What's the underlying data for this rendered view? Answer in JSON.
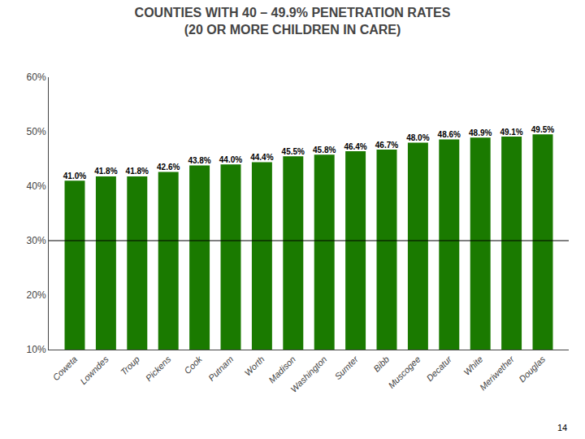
{
  "chart_data": {
    "type": "bar",
    "title": "COUNTIES WITH 40 – 49.9% PENETRATION RATES\n(20 OR MORE CHILDREN IN CARE)",
    "categories": [
      "Coweta",
      "Lowndes",
      "Troup",
      "Pickens",
      "Cook",
      "Putnam",
      "Worth",
      "Madison",
      "Washington",
      "Sumter",
      "Bibb",
      "Muscogee",
      "Decatur",
      "White",
      "Meriwether",
      "Douglas"
    ],
    "values": [
      41.0,
      41.8,
      41.8,
      42.6,
      43.8,
      44.0,
      44.4,
      45.5,
      45.8,
      46.4,
      46.7,
      48.0,
      48.6,
      48.9,
      49.1,
      49.5
    ],
    "value_labels": [
      "41.0%",
      "41.8%",
      "41.8%",
      "42.6%",
      "43.8%",
      "44.0%",
      "44.4%",
      "45.5%",
      "45.8%",
      "46.4%",
      "46.7%",
      "48.0%",
      "48.6%",
      "48.9%",
      "49.1%",
      "49.5%"
    ],
    "data_labels": true,
    "color": "#1a7a00",
    "ylim": [
      10,
      60
    ],
    "yticks": [
      {
        "value": 10,
        "label": "10%"
      },
      {
        "value": 20,
        "label": "20%"
      },
      {
        "value": 30,
        "label": "30%"
      },
      {
        "value": 40,
        "label": "40%"
      },
      {
        "value": 50,
        "label": "50%"
      },
      {
        "value": 60,
        "label": "60%"
      }
    ],
    "grid": false,
    "hlines": [
      30
    ],
    "annotations": [
      {
        "text": "14"
      }
    ]
  }
}
